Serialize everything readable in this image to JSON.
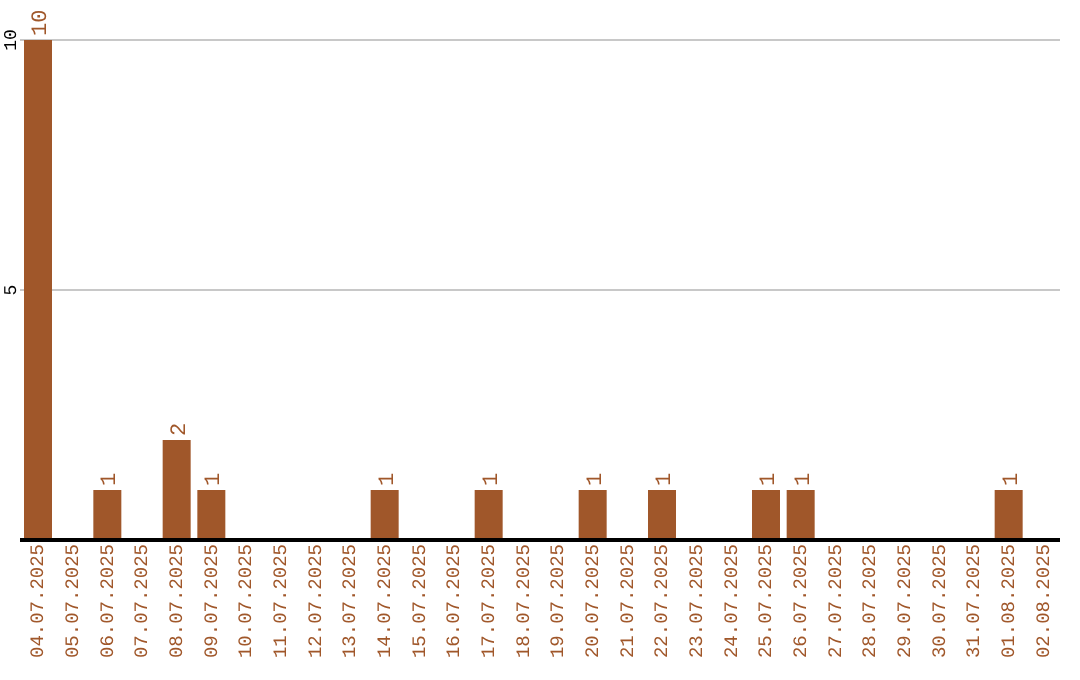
{
  "chart_data": {
    "type": "bar",
    "categories": [
      "04.07.2025",
      "05.07.2025",
      "06.07.2025",
      "07.07.2025",
      "08.07.2025",
      "09.07.2025",
      "10.07.2025",
      "11.07.2025",
      "12.07.2025",
      "13.07.2025",
      "14.07.2025",
      "15.07.2025",
      "16.07.2025",
      "17.07.2025",
      "18.07.2025",
      "19.07.2025",
      "20.07.2025",
      "21.07.2025",
      "22.07.2025",
      "23.07.2025",
      "24.07.2025",
      "25.07.2025",
      "26.07.2025",
      "27.07.2025",
      "28.07.2025",
      "29.07.2025",
      "30.07.2025",
      "31.07.2025",
      "01.08.2025",
      "02.08.2025"
    ],
    "values": [
      10,
      0,
      1,
      0,
      2,
      1,
      0,
      0,
      0,
      0,
      1,
      0,
      0,
      1,
      0,
      0,
      1,
      0,
      1,
      0,
      0,
      1,
      1,
      0,
      0,
      0,
      0,
      0,
      1,
      0
    ],
    "value_labels": [
      "10",
      null,
      "1",
      null,
      "2",
      "1",
      null,
      null,
      null,
      null,
      "1",
      null,
      null,
      "1",
      null,
      null,
      "1",
      null,
      "1",
      null,
      null,
      "1",
      "1",
      null,
      null,
      null,
      null,
      null,
      "1",
      null
    ],
    "color": "#a0572a",
    "ylim": [
      0,
      10
    ],
    "yticks": [
      5,
      10
    ],
    "grid": "y"
  }
}
